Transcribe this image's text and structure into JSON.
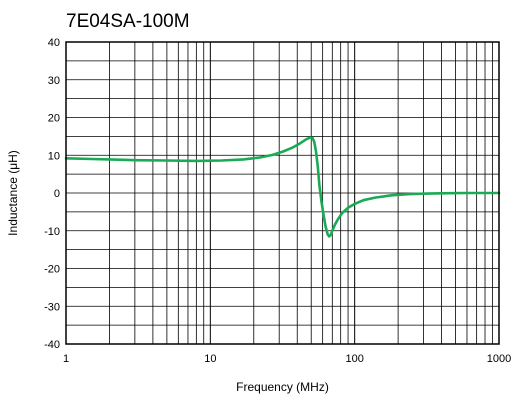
{
  "chart_data": {
    "type": "line",
    "title": "7E04SA-100M",
    "xlabel": "Frequency (MHz)",
    "ylabel": "Inductance (μH)",
    "xscale": "log",
    "xlim": [
      1,
      1000
    ],
    "ylim": [
      -40,
      40
    ],
    "grid": true,
    "x_ticks": [
      1,
      10,
      100,
      1000
    ],
    "x_tick_labels": [
      "1",
      "10",
      "100",
      "1000"
    ],
    "y_ticks": [
      -40,
      -30,
      -20,
      -10,
      0,
      10,
      20,
      30,
      40
    ],
    "y_tick_labels": [
      "-40",
      "-30",
      "-20",
      "-10",
      "0",
      "10",
      "20",
      "30",
      "40"
    ],
    "series": [
      {
        "color": "#1aaa55",
        "x": [
          1,
          1.5,
          2,
          3,
          5,
          8,
          12,
          17,
          22,
          27,
          32,
          37,
          42,
          46,
          49,
          51,
          52.5,
          54,
          55.5,
          57,
          59,
          61,
          63,
          65,
          66.5,
          68,
          70,
          73,
          77,
          82,
          90,
          100,
          115,
          140,
          180,
          240,
          320,
          450,
          600,
          800,
          1000
        ],
        "y": [
          9.2,
          9.0,
          8.9,
          8.7,
          8.6,
          8.5,
          8.6,
          8.9,
          9.4,
          10.1,
          11.0,
          12.0,
          13.2,
          14.2,
          14.7,
          14.6,
          13.5,
          11.0,
          7.0,
          2.0,
          -2.5,
          -6.0,
          -9.0,
          -11.0,
          -11.5,
          -11.2,
          -10.0,
          -8.4,
          -6.8,
          -5.3,
          -3.9,
          -2.9,
          -1.9,
          -1.2,
          -0.6,
          -0.3,
          -0.15,
          -0.05,
          0.0,
          0.0,
          0.0
        ]
      }
    ]
  }
}
